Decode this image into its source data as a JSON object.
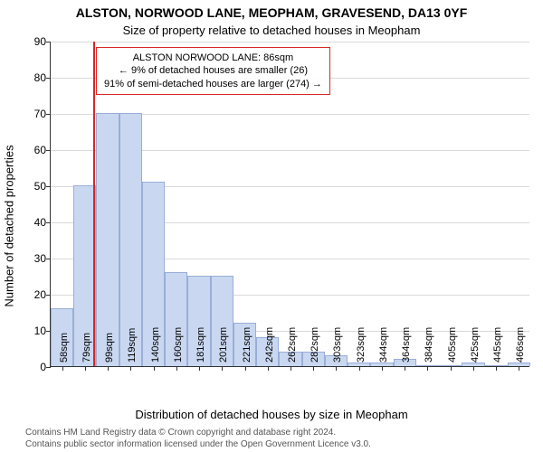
{
  "titles": {
    "main": "ALSTON, NORWOOD LANE, MEOPHAM, GRAVESEND, DA13 0YF",
    "sub": "Size of property relative to detached houses in Meopham"
  },
  "axes": {
    "ylabel": "Number of detached properties",
    "xlabel": "Distribution of detached houses by size in Meopham",
    "ymax": 90,
    "ytick_step": 10,
    "yticks": [
      0,
      10,
      20,
      30,
      40,
      50,
      60,
      70,
      80,
      90
    ],
    "grid_color": "#d9d9d9",
    "plot_border": "#333333"
  },
  "histogram": {
    "type": "histogram",
    "bar_color_fill": "#c9d7f0",
    "bar_color_stroke": "#99aed8",
    "bin_start": 48,
    "bin_width_sqm": 20.4,
    "n_bins": 21,
    "values": [
      16,
      50,
      70,
      70,
      51,
      26,
      25,
      25,
      12,
      8,
      4,
      4,
      3,
      1,
      1,
      2,
      0,
      0,
      1,
      0,
      1
    ],
    "xtick_labels": [
      "58sqm",
      "79sqm",
      "99sqm",
      "119sqm",
      "140sqm",
      "160sqm",
      "181sqm",
      "201sqm",
      "221sqm",
      "242sqm",
      "262sqm",
      "282sqm",
      "303sqm",
      "323sqm",
      "344sqm",
      "364sqm",
      "384sqm",
      "405sqm",
      "425sqm",
      "445sqm",
      "466sqm"
    ]
  },
  "marker": {
    "value_sqm": 86,
    "color": "#d62728"
  },
  "annotation": {
    "border_color": "#d62728",
    "line1": "ALSTON NORWOOD LANE: 86sqm",
    "line2": "← 9% of detached houses are smaller (26)",
    "line3": "91% of semi-detached houses are larger (274) →"
  },
  "footer": {
    "line1": "Contains HM Land Registry data © Crown copyright and database right 2024.",
    "line2": "Contains public sector information licensed under the Open Government Licence v3.0."
  },
  "style": {
    "background_color": "#ffffff",
    "title_fontsize": 14,
    "sub_fontsize": 13,
    "label_fontsize": 13,
    "tick_fontsize": 12,
    "footer_fontsize": 10
  }
}
